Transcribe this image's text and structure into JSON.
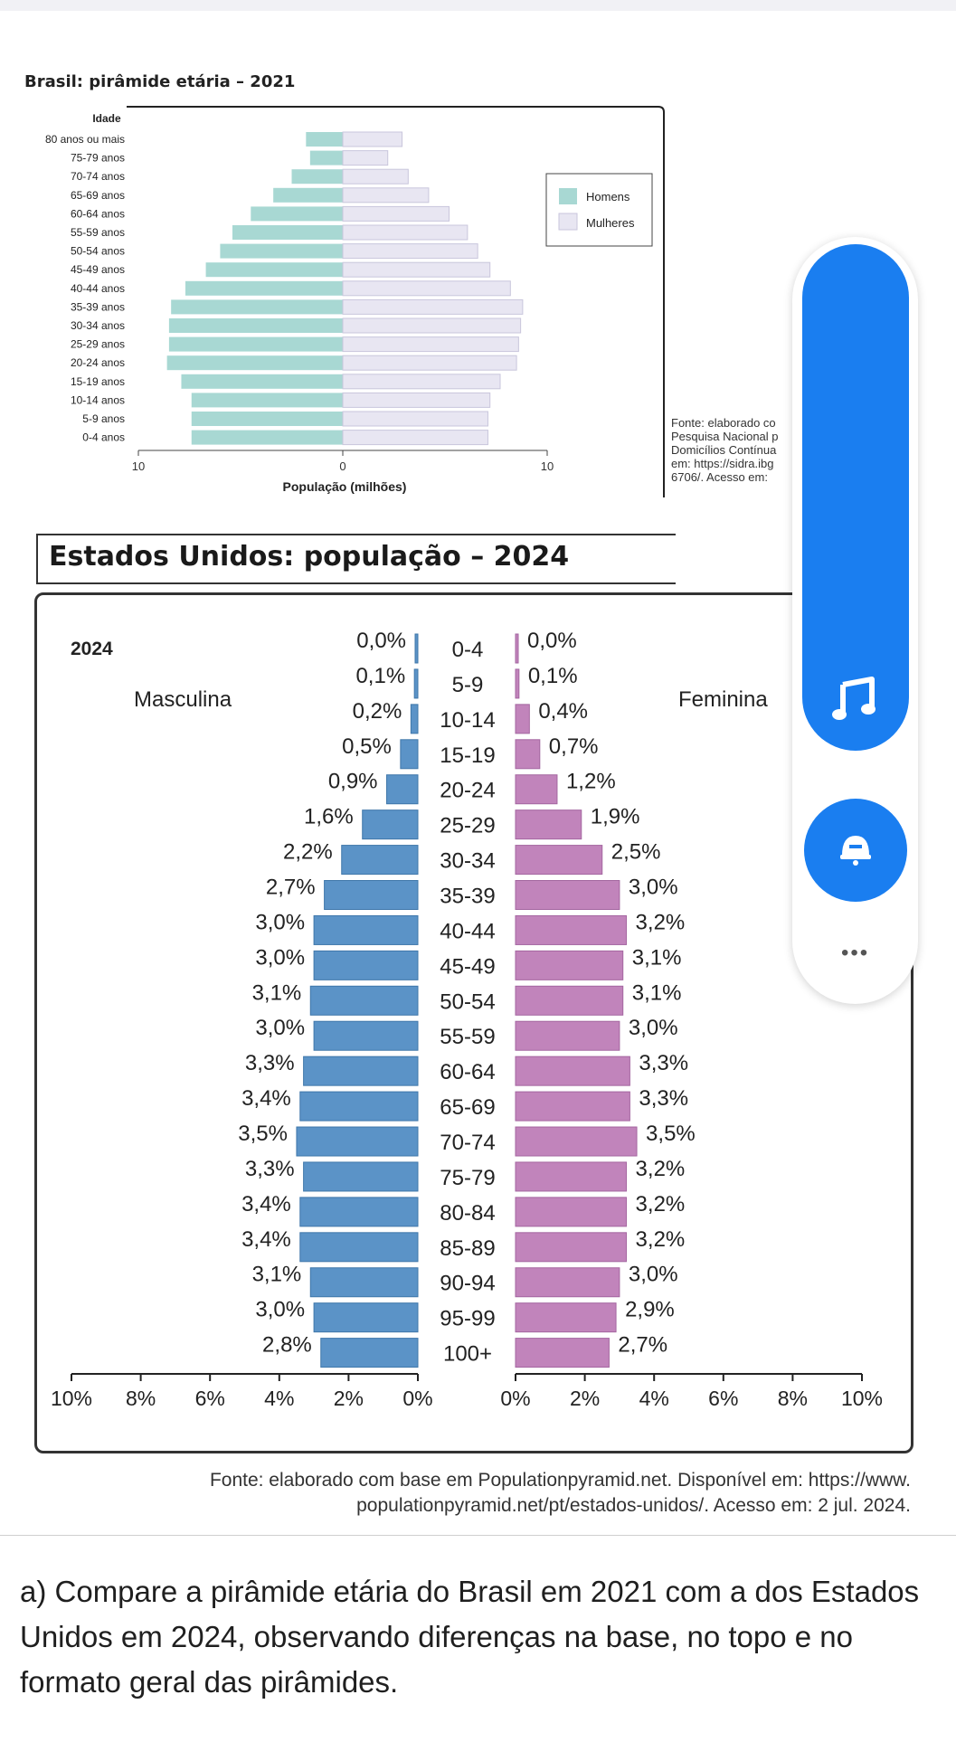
{
  "brazil": {
    "title": "Brasil: pirâmide etária – 2021",
    "y_axis_label": "Idade",
    "x_axis_label": "População (milhões)",
    "legend": [
      "Homens",
      "Mulheres"
    ],
    "source_lines": [
      "Fonte: elaborado co",
      "Pesquisa Nacional p",
      "Domicílios Contínua",
      "em: https://sidra.ibg",
      "6706/. Acesso em:"
    ],
    "colors": {
      "homens": "#a8d8d3",
      "mulheres": "#e8e6f2",
      "frame": "#222222"
    }
  },
  "usa": {
    "title": "Estados Unidos: população – 2024",
    "year_label": "2024",
    "male_label": "Masculina",
    "female_label": "Feminina",
    "source_line_1": "Fonte: elaborado com base em Populationpyramid.net. Disponível em: https://www.",
    "source_line_2": "populationpyramid.net/pt/estados-unidos/. Acesso em: 2 jul. 2024.",
    "colors": {
      "male": "#5b93c7",
      "female": "#c184bb"
    }
  },
  "question": "a) Compare a pirâmide etária do Brasil em 2021 com a dos Estados Unidos em 2024, observando diferenças na base, no topo e no formato geral das pirâmides.",
  "side_panel": {
    "icons": [
      "music-note-icon",
      "ring-bell-icon",
      "more-horizontal-icon"
    ],
    "more_label": "•••",
    "accent_color": "#1a7ef0"
  },
  "chart_data": [
    {
      "type": "bar",
      "orientation": "horizontal-pyramid",
      "title": "Brasil: pirâmide etária – 2021",
      "ylabel": "Idade",
      "xlabel": "População (milhões)",
      "xlim": [
        -10,
        10
      ],
      "x_ticks": [
        "10",
        "0",
        "10"
      ],
      "legend_placement": "right",
      "categories": [
        "80 anos ou mais",
        "75-79 anos",
        "70-74 anos",
        "65-69 anos",
        "60-64 anos",
        "55-59 anos",
        "50-54 anos",
        "45-49 anos",
        "40-44 anos",
        "35-39 anos",
        "30-34 anos",
        "25-29 anos",
        "20-24 anos",
        "15-19 anos",
        "10-14 anos",
        "5-9 anos",
        "0-4 anos"
      ],
      "series": [
        {
          "name": "Homens",
          "values": [
            1.8,
            1.6,
            2.5,
            3.4,
            4.5,
            5.4,
            6.0,
            6.7,
            7.7,
            8.4,
            8.5,
            8.5,
            8.6,
            7.9,
            7.4,
            7.4,
            7.4
          ]
        },
        {
          "name": "Mulheres",
          "values": [
            2.9,
            2.2,
            3.2,
            4.2,
            5.2,
            6.1,
            6.6,
            7.2,
            8.2,
            8.8,
            8.7,
            8.6,
            8.5,
            7.7,
            7.2,
            7.1,
            7.1
          ]
        }
      ]
    },
    {
      "type": "bar",
      "orientation": "horizontal-pyramid",
      "title": "Estados Unidos: população – 2024",
      "annotation": "2024",
      "xlim": [
        -10,
        10
      ],
      "x_ticks_left": [
        "10%",
        "8%",
        "6%",
        "4%",
        "2%",
        "0%"
      ],
      "x_ticks_right": [
        "0%",
        "2%",
        "4%",
        "6%",
        "8%",
        "10%"
      ],
      "categories": [
        "0-4",
        "5-9",
        "10-14",
        "15-19",
        "20-24",
        "25-29",
        "30-34",
        "35-39",
        "40-44",
        "45-49",
        "50-54",
        "55-59",
        "60-64",
        "65-69",
        "70-74",
        "75-79",
        "80-84",
        "85-89",
        "90-94",
        "95-99",
        "100+"
      ],
      "series": [
        {
          "name": "Masculina",
          "values": [
            0.0,
            0.1,
            0.2,
            0.5,
            0.9,
            1.6,
            2.2,
            2.7,
            3.0,
            3.0,
            3.1,
            3.0,
            3.3,
            3.4,
            3.5,
            3.3,
            3.4,
            3.4,
            3.1,
            3.0,
            2.8
          ],
          "labels": [
            "0,0%",
            "0,1%",
            "0,2%",
            "0,5%",
            "0,9%",
            "1,6%",
            "2,2%",
            "2,7%",
            "3,0%",
            "3,0%",
            "3,1%",
            "3,0%",
            "3,3%",
            "3,4%",
            "3,5%",
            "3,3%",
            "3,4%",
            "3,4%",
            "3,1%",
            "3,0%",
            "2,8%"
          ]
        },
        {
          "name": "Feminina",
          "values": [
            0.0,
            0.1,
            0.4,
            0.7,
            1.2,
            1.9,
            2.5,
            3.0,
            3.2,
            3.1,
            3.1,
            3.0,
            3.3,
            3.3,
            3.5,
            3.2,
            3.2,
            3.2,
            3.0,
            2.9,
            2.7
          ],
          "labels": [
            "0,0%",
            "0,1%",
            "0,4%",
            "0,7%",
            "1,2%",
            "1,9%",
            "2,5%",
            "3,0%",
            "3,2%",
            "3,1%",
            "3,1%",
            "3,0%",
            "3,3%",
            "3,3%",
            "3,5%",
            "3,2%",
            "3,2%",
            "3,2%",
            "3,0%",
            "2,9%",
            "2,7%"
          ]
        }
      ]
    }
  ]
}
